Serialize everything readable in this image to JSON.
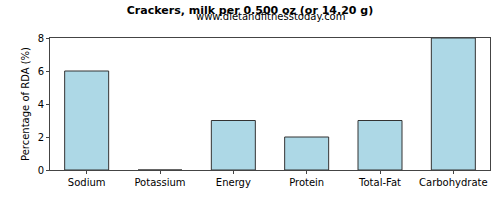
{
  "chart_data": {
    "type": "bar",
    "title": "Crackers, milk per 0.500 oz (or 14.20 g)",
    "subtitle": "www.dietandfitnesstoday.com",
    "ylabel": "Percentage of RDA (%)",
    "categories": [
      "Sodium",
      "Potassium",
      "Energy",
      "Protein",
      "Total-Fat",
      "Carbohydrate"
    ],
    "values": [
      6,
      0,
      3,
      2,
      3,
      8
    ],
    "color": "#add8e6",
    "ylim": [
      0,
      8
    ],
    "yticks": [
      0,
      2,
      4,
      6,
      8
    ],
    "grid": false
  }
}
